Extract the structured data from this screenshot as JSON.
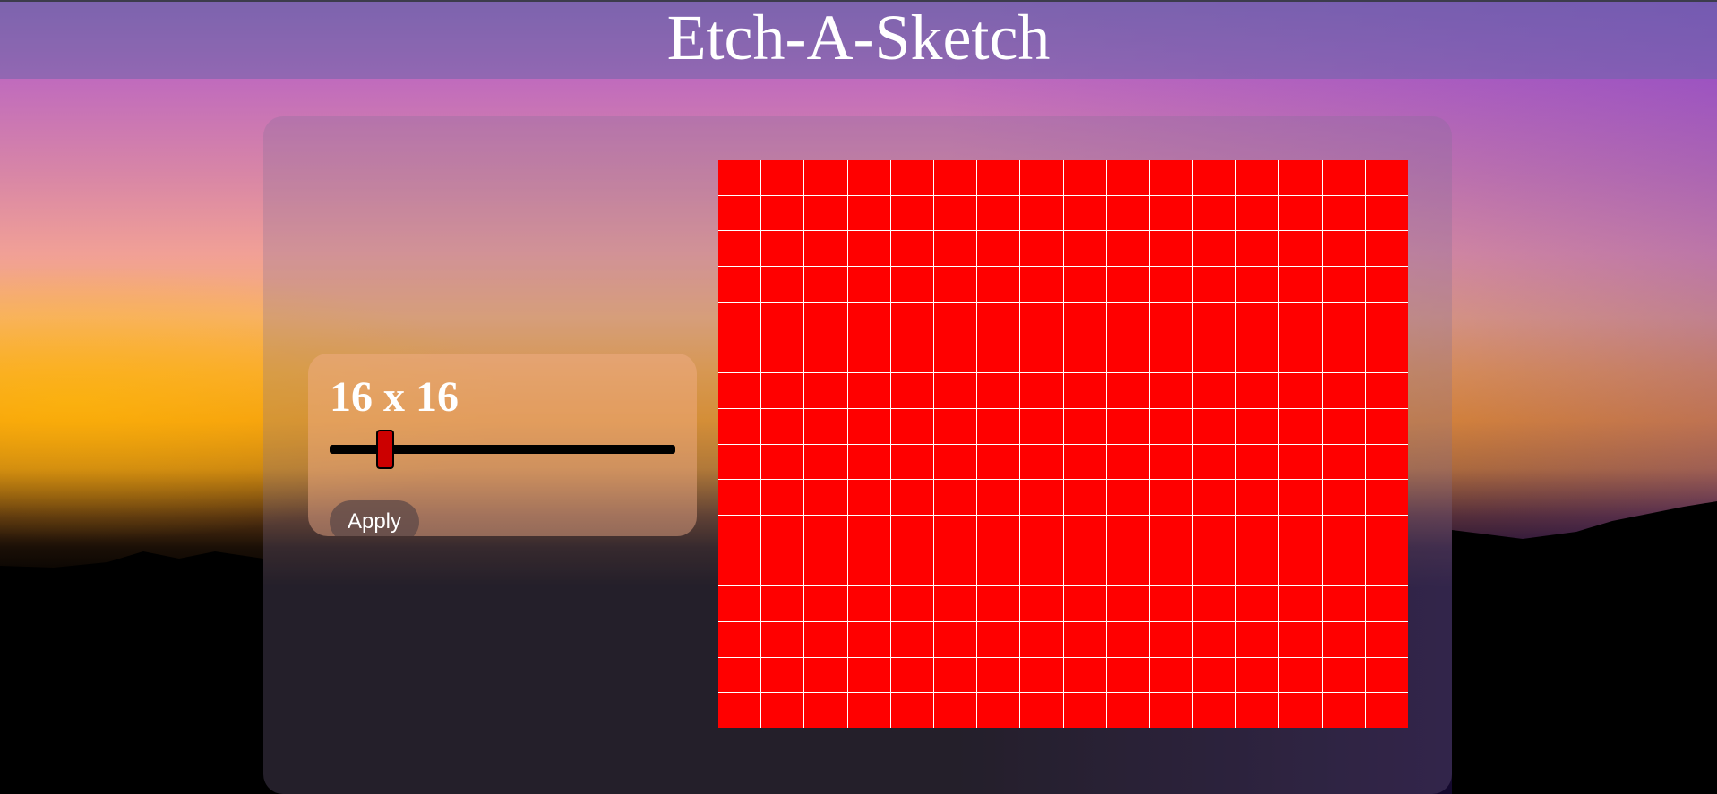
{
  "header": {
    "title": "Etch-A-Sketch"
  },
  "controls": {
    "size_label": "16 x 16",
    "apply_label": "Apply",
    "slider": {
      "value": 16,
      "min": 1,
      "max": 100,
      "position_fraction": 0.16
    }
  },
  "grid": {
    "rows": 16,
    "cols": 16,
    "cell_color": "#ff0000",
    "line_color": "#ffffff"
  },
  "colors": {
    "header_bg": "#6e64aa",
    "slider_thumb": "#cc0000",
    "slider_track": "#000000",
    "apply_bg": "#5a4646"
  },
  "icons": {
    "background": "sunset-landscape"
  }
}
